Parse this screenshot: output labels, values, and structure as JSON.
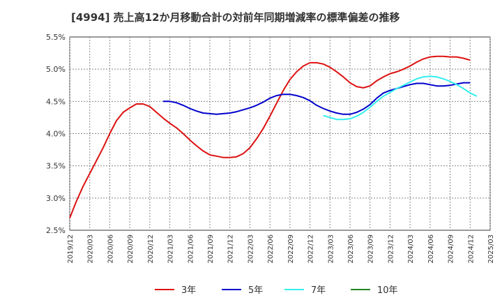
{
  "title": "[4994]  売上高12か月移動合計の対前年同期増減率の標準偏差の推移",
  "chart_data": {
    "type": "line",
    "title": "[4994]  売上高12か月移動合計の対前年同期増減率の標準偏差の推移",
    "xlabel": "",
    "ylabel": "",
    "ylim": [
      2.5,
      5.5
    ],
    "y_ticks": [
      "2.5%",
      "3.0%",
      "3.5%",
      "4.0%",
      "4.5%",
      "5.0%",
      "5.5%"
    ],
    "x_ticks": [
      "2019/12",
      "2020/03",
      "2020/06",
      "2020/09",
      "2020/12",
      "2021/03",
      "2021/06",
      "2021/09",
      "2021/12",
      "2022/03",
      "2022/06",
      "2022/09",
      "2022/12",
      "2023/03",
      "2023/06",
      "2023/09",
      "2023/12",
      "2024/03",
      "2024/06",
      "2024/09",
      "2024/12",
      "2025/03"
    ],
    "grid": true,
    "legend_position": "bottom",
    "series": [
      {
        "name": "3年",
        "color": "#dd1111",
        "points": [
          [
            "2019/12",
            2.69
          ],
          [
            "2020/01",
            2.95
          ],
          [
            "2020/02",
            3.18
          ],
          [
            "2020/03",
            3.38
          ],
          [
            "2020/04",
            3.58
          ],
          [
            "2020/05",
            3.78
          ],
          [
            "2020/06",
            4.0
          ],
          [
            "2020/07",
            4.2
          ],
          [
            "2020/08",
            4.33
          ],
          [
            "2020/09",
            4.4
          ],
          [
            "2020/10",
            4.46
          ],
          [
            "2020/11",
            4.46
          ],
          [
            "2020/12",
            4.42
          ],
          [
            "2021/01",
            4.33
          ],
          [
            "2021/02",
            4.24
          ],
          [
            "2021/03",
            4.16
          ],
          [
            "2021/04",
            4.09
          ],
          [
            "2021/05",
            4.0
          ],
          [
            "2021/06",
            3.9
          ],
          [
            "2021/07",
            3.81
          ],
          [
            "2021/08",
            3.73
          ],
          [
            "2021/09",
            3.67
          ],
          [
            "2021/10",
            3.65
          ],
          [
            "2021/11",
            3.63
          ],
          [
            "2021/12",
            3.63
          ],
          [
            "2022/01",
            3.64
          ],
          [
            "2022/02",
            3.69
          ],
          [
            "2022/03",
            3.78
          ],
          [
            "2022/04",
            3.92
          ],
          [
            "2022/05",
            4.08
          ],
          [
            "2022/06",
            4.27
          ],
          [
            "2022/07",
            4.47
          ],
          [
            "2022/08",
            4.67
          ],
          [
            "2022/09",
            4.84
          ],
          [
            "2022/10",
            4.96
          ],
          [
            "2022/11",
            5.05
          ],
          [
            "2022/12",
            5.1
          ],
          [
            "2023/01",
            5.1
          ],
          [
            "2023/02",
            5.08
          ],
          [
            "2023/03",
            5.03
          ],
          [
            "2023/04",
            4.96
          ],
          [
            "2023/05",
            4.88
          ],
          [
            "2023/06",
            4.79
          ],
          [
            "2023/07",
            4.73
          ],
          [
            "2023/08",
            4.71
          ],
          [
            "2023/09",
            4.74
          ],
          [
            "2023/10",
            4.82
          ],
          [
            "2023/11",
            4.88
          ],
          [
            "2023/12",
            4.93
          ],
          [
            "2024/01",
            4.96
          ],
          [
            "2024/02",
            5.0
          ],
          [
            "2024/03",
            5.05
          ],
          [
            "2024/04",
            5.11
          ],
          [
            "2024/05",
            5.16
          ],
          [
            "2024/06",
            5.19
          ],
          [
            "2024/07",
            5.2
          ],
          [
            "2024/08",
            5.2
          ],
          [
            "2024/09",
            5.19
          ],
          [
            "2024/10",
            5.19
          ],
          [
            "2024/11",
            5.17
          ],
          [
            "2024/12",
            5.14
          ]
        ]
      },
      {
        "name": "5年",
        "color": "#0000cc",
        "points": [
          [
            "2021/02",
            4.5
          ],
          [
            "2021/03",
            4.5
          ],
          [
            "2021/04",
            4.48
          ],
          [
            "2021/05",
            4.44
          ],
          [
            "2021/06",
            4.39
          ],
          [
            "2021/07",
            4.35
          ],
          [
            "2021/08",
            4.32
          ],
          [
            "2021/09",
            4.31
          ],
          [
            "2021/10",
            4.3
          ],
          [
            "2021/11",
            4.31
          ],
          [
            "2021/12",
            4.32
          ],
          [
            "2022/01",
            4.34
          ],
          [
            "2022/02",
            4.37
          ],
          [
            "2022/03",
            4.4
          ],
          [
            "2022/04",
            4.44
          ],
          [
            "2022/05",
            4.49
          ],
          [
            "2022/06",
            4.55
          ],
          [
            "2022/07",
            4.59
          ],
          [
            "2022/08",
            4.61
          ],
          [
            "2022/09",
            4.61
          ],
          [
            "2022/10",
            4.59
          ],
          [
            "2022/11",
            4.56
          ],
          [
            "2022/12",
            4.51
          ],
          [
            "2023/01",
            4.44
          ],
          [
            "2023/02",
            4.39
          ],
          [
            "2023/03",
            4.35
          ],
          [
            "2023/04",
            4.32
          ],
          [
            "2023/05",
            4.3
          ],
          [
            "2023/06",
            4.3
          ],
          [
            "2023/07",
            4.33
          ],
          [
            "2023/08",
            4.38
          ],
          [
            "2023/09",
            4.45
          ],
          [
            "2023/10",
            4.55
          ],
          [
            "2023/11",
            4.63
          ],
          [
            "2023/12",
            4.67
          ],
          [
            "2024/01",
            4.7
          ],
          [
            "2024/02",
            4.73
          ],
          [
            "2024/03",
            4.76
          ],
          [
            "2024/04",
            4.78
          ],
          [
            "2024/05",
            4.78
          ],
          [
            "2024/06",
            4.76
          ],
          [
            "2024/07",
            4.74
          ],
          [
            "2024/08",
            4.74
          ],
          [
            "2024/09",
            4.75
          ],
          [
            "2024/10",
            4.77
          ],
          [
            "2024/11",
            4.79
          ],
          [
            "2024/12",
            4.79
          ]
        ]
      },
      {
        "name": "7年",
        "color": "#33eeee",
        "points": [
          [
            "2023/02",
            4.28
          ],
          [
            "2023/03",
            4.25
          ],
          [
            "2023/04",
            4.22
          ],
          [
            "2023/05",
            4.22
          ],
          [
            "2023/06",
            4.23
          ],
          [
            "2023/07",
            4.27
          ],
          [
            "2023/08",
            4.33
          ],
          [
            "2023/09",
            4.41
          ],
          [
            "2023/10",
            4.5
          ],
          [
            "2023/11",
            4.58
          ],
          [
            "2023/12",
            4.64
          ],
          [
            "2024/01",
            4.7
          ],
          [
            "2024/02",
            4.75
          ],
          [
            "2024/03",
            4.8
          ],
          [
            "2024/04",
            4.85
          ],
          [
            "2024/05",
            4.88
          ],
          [
            "2024/06",
            4.89
          ],
          [
            "2024/07",
            4.88
          ],
          [
            "2024/08",
            4.85
          ],
          [
            "2024/09",
            4.81
          ],
          [
            "2024/10",
            4.76
          ],
          [
            "2024/11",
            4.7
          ],
          [
            "2024/12",
            4.63
          ],
          [
            "2025/01",
            4.58
          ]
        ]
      },
      {
        "name": "10年",
        "color": "#228822",
        "points": []
      }
    ]
  }
}
